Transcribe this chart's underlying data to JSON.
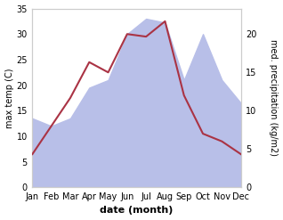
{
  "months": [
    "Jan",
    "Feb",
    "Mar",
    "Apr",
    "May",
    "Jun",
    "Jul",
    "Aug",
    "Sep",
    "Oct",
    "Nov",
    "Dec"
  ],
  "temp": [
    6.5,
    12.0,
    17.5,
    24.5,
    22.5,
    30.0,
    29.5,
    32.5,
    18.0,
    10.5,
    9.0,
    6.5
  ],
  "precip": [
    9.0,
    8.0,
    9.0,
    13.0,
    14.0,
    20.0,
    22.0,
    21.5,
    14.0,
    20.0,
    14.0,
    11.0
  ],
  "temp_color": "#aa3344",
  "precip_fill_color": "#b8bfe8",
  "ylim_left": [
    0,
    35
  ],
  "ylim_right": [
    0,
    23.333
  ],
  "yticks_left": [
    0,
    5,
    10,
    15,
    20,
    25,
    30,
    35
  ],
  "yticks_right": [
    0,
    5,
    10,
    15,
    20
  ],
  "xlabel": "date (month)",
  "ylabel_left": "max temp (C)",
  "ylabel_right": "med. precipitation (kg/m2)",
  "bg_color": "#ffffff",
  "tick_label_size": 7,
  "axis_label_size": 8
}
